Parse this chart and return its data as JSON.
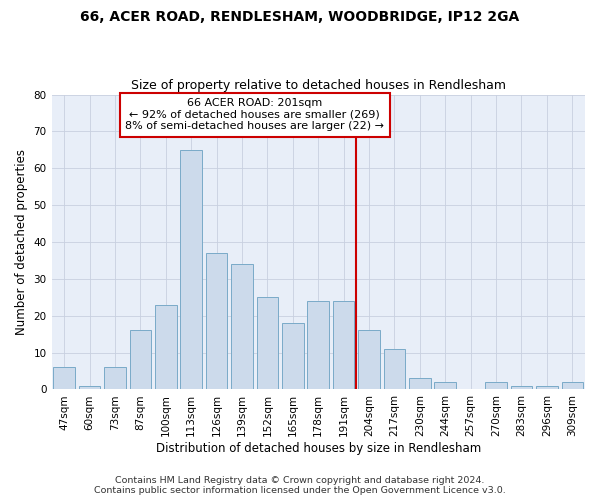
{
  "title": "66, ACER ROAD, RENDLESHAM, WOODBRIDGE, IP12 2GA",
  "subtitle": "Size of property relative to detached houses in Rendlesham",
  "xlabel": "Distribution of detached houses by size in Rendlesham",
  "ylabel": "Number of detached properties",
  "categories": [
    "47sqm",
    "60sqm",
    "73sqm",
    "87sqm",
    "100sqm",
    "113sqm",
    "126sqm",
    "139sqm",
    "152sqm",
    "165sqm",
    "178sqm",
    "191sqm",
    "204sqm",
    "217sqm",
    "230sqm",
    "244sqm",
    "257sqm",
    "270sqm",
    "283sqm",
    "296sqm",
    "309sqm"
  ],
  "values": [
    6,
    1,
    6,
    16,
    23,
    65,
    37,
    34,
    25,
    18,
    24,
    24,
    16,
    11,
    3,
    2,
    0,
    2,
    1,
    1,
    2
  ],
  "bar_color": "#ccdaeb",
  "bar_edge_color": "#7aaac8",
  "vline_color": "#cc0000",
  "annotation_line1": "66 ACER ROAD: 201sqm",
  "annotation_line2": "← 92% of detached houses are smaller (269)",
  "annotation_line3": "8% of semi-detached houses are larger (22) →",
  "ylim": [
    0,
    80
  ],
  "yticks": [
    0,
    10,
    20,
    30,
    40,
    50,
    60,
    70,
    80
  ],
  "grid_color": "#c8d0e0",
  "bg_color": "#e8eef8",
  "footer1": "Contains HM Land Registry data © Crown copyright and database right 2024.",
  "footer2": "Contains public sector information licensed under the Open Government Licence v3.0.",
  "title_fontsize": 10,
  "subtitle_fontsize": 9,
  "axis_label_fontsize": 8.5,
  "tick_fontsize": 7.5,
  "footer_fontsize": 6.8,
  "annotation_fontsize": 8
}
